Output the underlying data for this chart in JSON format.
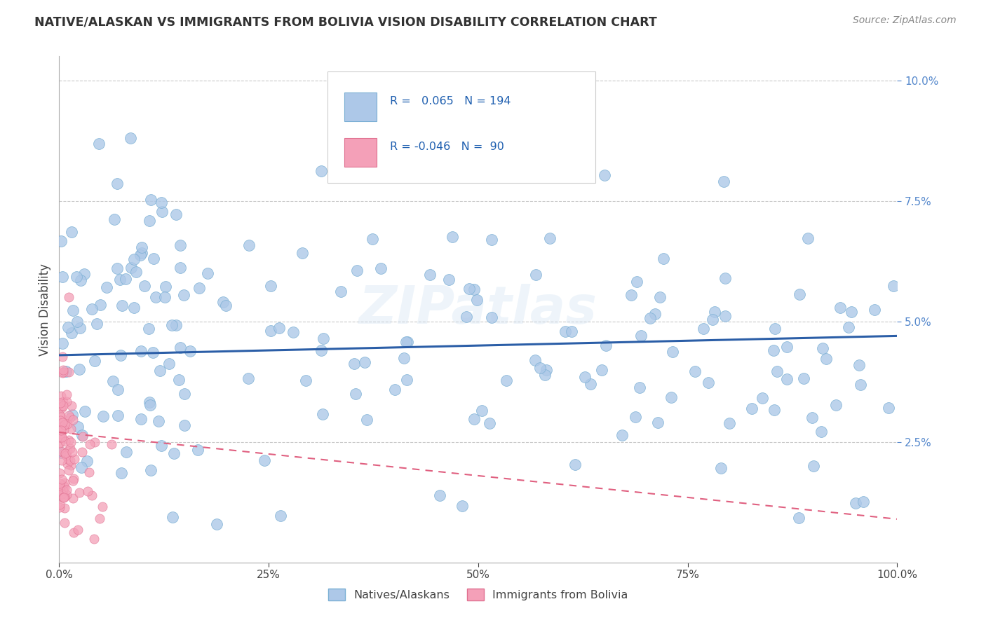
{
  "title": "NATIVE/ALASKAN VS IMMIGRANTS FROM BOLIVIA VISION DISABILITY CORRELATION CHART",
  "source": "Source: ZipAtlas.com",
  "ylabel": "Vision Disability",
  "watermark": "ZIPatlas",
  "blue_r": 0.065,
  "blue_n": 194,
  "pink_r": -0.046,
  "pink_n": 90,
  "blue_color": "#adc8e8",
  "blue_edge": "#7aafd4",
  "blue_line_color": "#2B5EA7",
  "pink_color": "#f4a0b8",
  "pink_edge": "#e07090",
  "pink_line_color": "#e06080",
  "background_color": "#ffffff",
  "grid_color": "#bbbbbb",
  "title_color": "#333333",
  "source_color": "#888888",
  "ytick_color": "#5588cc",
  "xtick_color": "#444444",
  "xlim": [
    0.0,
    1.0
  ],
  "ylim": [
    0.0,
    0.105
  ],
  "xticks": [
    0.0,
    0.25,
    0.5,
    0.75,
    1.0
  ],
  "yticks": [
    0.025,
    0.05,
    0.075,
    0.1
  ],
  "figsize": [
    14.06,
    8.92
  ],
  "dpi": 100
}
